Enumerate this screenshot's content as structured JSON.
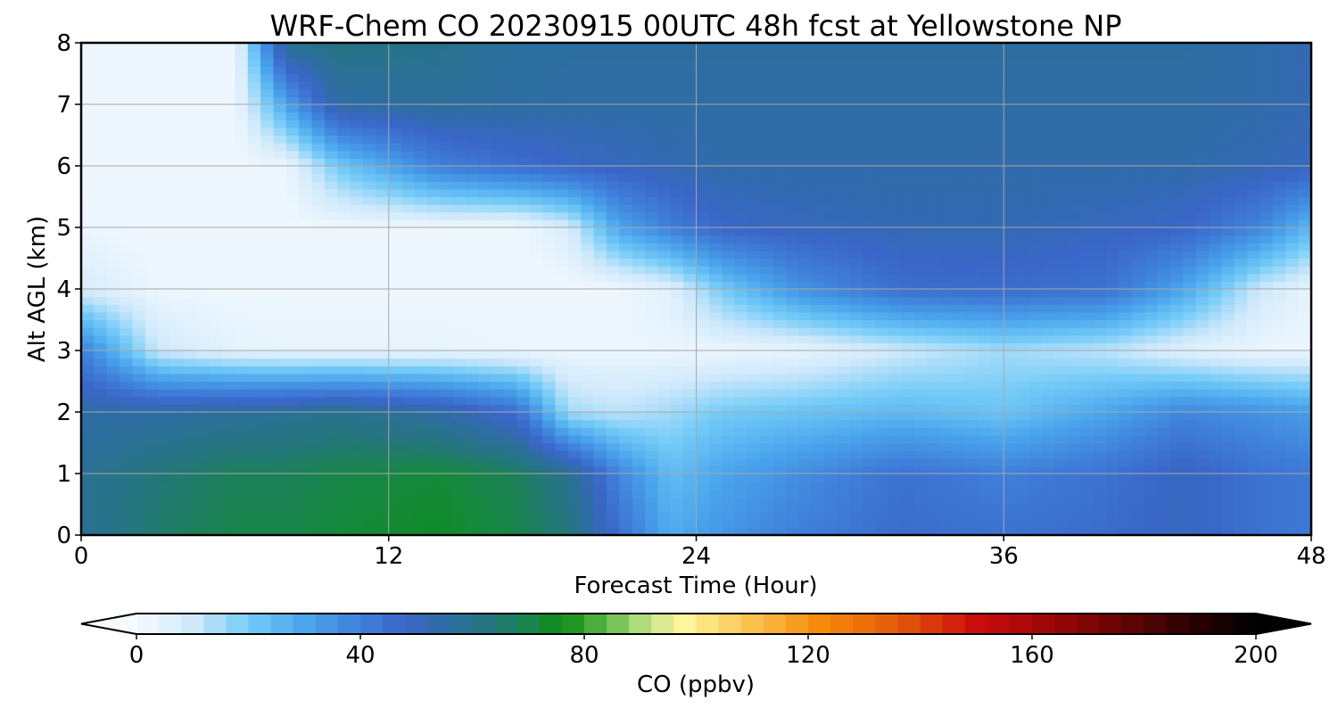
{
  "chart_data": {
    "type": "heatmap",
    "title": "WRF-Chem CO  20230915 00UTC 48h fcst at Yellowstone NP",
    "xlabel": "Forecast Time (Hour)",
    "ylabel": "Alt AGL (km)",
    "xlim": [
      0,
      48
    ],
    "ylim": [
      0,
      8
    ],
    "xticks": [
      0,
      12,
      24,
      36,
      48
    ],
    "yticks": [
      0,
      1,
      2,
      3,
      4,
      5,
      6,
      7,
      8
    ],
    "grid": true,
    "colorbar": {
      "label": "CO  (ppbv)",
      "range": [
        0,
        200
      ],
      "ticks": [
        0,
        40,
        80,
        120,
        160,
        200
      ],
      "extend": "both",
      "orientation": "horizontal",
      "stops": [
        {
          "value": 0,
          "color": "#f7fbff"
        },
        {
          "value": 10,
          "color": "#cfe9fb"
        },
        {
          "value": 20,
          "color": "#74cbf7"
        },
        {
          "value": 30,
          "color": "#4aa5ec"
        },
        {
          "value": 40,
          "color": "#3f7fd9"
        },
        {
          "value": 48,
          "color": "#3a66c8"
        },
        {
          "value": 56,
          "color": "#2d6ea0"
        },
        {
          "value": 64,
          "color": "#24777a"
        },
        {
          "value": 72,
          "color": "#158a3a"
        },
        {
          "value": 76,
          "color": "#0a8a14"
        },
        {
          "value": 84,
          "color": "#5fb84a"
        },
        {
          "value": 92,
          "color": "#c9e68c"
        },
        {
          "value": 98,
          "color": "#fff59a"
        },
        {
          "value": 110,
          "color": "#fbc14f"
        },
        {
          "value": 122,
          "color": "#f78a0a"
        },
        {
          "value": 136,
          "color": "#e35a0a"
        },
        {
          "value": 150,
          "color": "#cc0b0b"
        },
        {
          "value": 168,
          "color": "#8a0505"
        },
        {
          "value": 185,
          "color": "#3b0202"
        },
        {
          "value": 200,
          "color": "#000000"
        }
      ]
    },
    "series": [
      {
        "x": 0,
        "y": [
          58,
          58,
          55,
          40,
          8,
          3,
          2,
          2,
          2
        ]
      },
      {
        "x": 3,
        "y": [
          66,
          64,
          55,
          10,
          3,
          2,
          2,
          2,
          2
        ]
      },
      {
        "x": 6,
        "y": [
          70,
          68,
          57,
          5,
          2,
          2,
          2,
          2,
          2
        ]
      },
      {
        "x": 8,
        "y": [
          70,
          68,
          58,
          4,
          2,
          2,
          3,
          30,
          60
        ]
      },
      {
        "x": 10,
        "y": [
          72,
          70,
          60,
          4,
          2,
          2,
          20,
          55,
          62
        ]
      },
      {
        "x": 14,
        "y": [
          74,
          72,
          55,
          4,
          2,
          2,
          40,
          57,
          60
        ]
      },
      {
        "x": 17,
        "y": [
          70,
          68,
          45,
          3,
          2,
          2,
          45,
          56,
          56
        ]
      },
      {
        "x": 19,
        "y": [
          64,
          60,
          15,
          3,
          2,
          8,
          48,
          55,
          56
        ]
      },
      {
        "x": 21,
        "y": [
          45,
          38,
          12,
          3,
          2,
          30,
          50,
          55,
          56
        ]
      },
      {
        "x": 23,
        "y": [
          28,
          24,
          15,
          3,
          6,
          40,
          52,
          55,
          56
        ]
      },
      {
        "x": 25,
        "y": [
          34,
          30,
          20,
          3,
          20,
          48,
          54,
          55,
          56
        ]
      },
      {
        "x": 28,
        "y": [
          40,
          36,
          22,
          4,
          35,
          50,
          54,
          55,
          56
        ]
      },
      {
        "x": 32,
        "y": [
          46,
          44,
          25,
          10,
          45,
          52,
          54,
          55,
          56
        ]
      },
      {
        "x": 36,
        "y": [
          44,
          40,
          22,
          15,
          46,
          52,
          54,
          55,
          56
        ]
      },
      {
        "x": 40,
        "y": [
          46,
          44,
          30,
          12,
          44,
          50,
          54,
          55,
          56
        ]
      },
      {
        "x": 43,
        "y": [
          50,
          50,
          38,
          6,
          30,
          48,
          54,
          55,
          56
        ]
      },
      {
        "x": 46,
        "y": [
          44,
          44,
          35,
          3,
          10,
          38,
          52,
          54,
          54
        ]
      },
      {
        "x": 48,
        "y": [
          42,
          42,
          32,
          3,
          4,
          25,
          50,
          52,
          52
        ]
      }
    ]
  }
}
